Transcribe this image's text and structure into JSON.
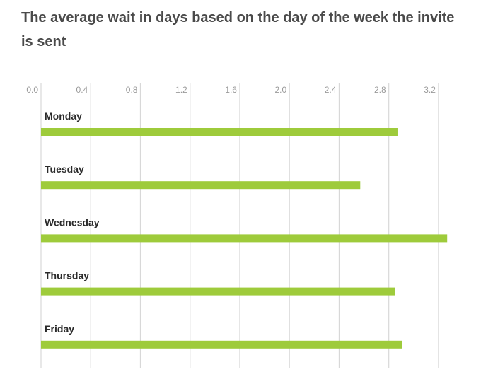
{
  "chart_data": {
    "type": "bar",
    "orientation": "horizontal",
    "title": "The average wait in days based on the day of the week the invite is sent",
    "xlabel": "",
    "ylabel": "",
    "categories": [
      "Monday",
      "Tuesday",
      "Wednesday",
      "Thursday",
      "Friday"
    ],
    "values": [
      2.87,
      2.57,
      3.27,
      2.85,
      2.91
    ],
    "xlim": [
      0,
      3.2
    ],
    "xticks": [
      "0.0",
      "0.4",
      "0.8",
      "1.2",
      "1.6",
      "2.0",
      "2.4",
      "2.8",
      "3.2"
    ],
    "grid": true,
    "bar_color": "#9ecb3b",
    "grid_color": "#d8d8d8"
  }
}
